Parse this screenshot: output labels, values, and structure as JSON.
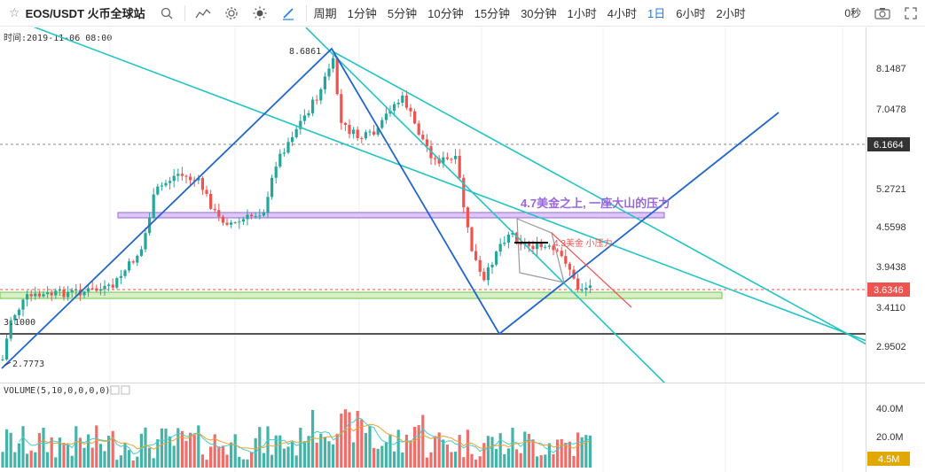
{
  "toolbar": {
    "symbol": "EOS/USDT 火币全球站",
    "period_label": "周期",
    "timeframes": [
      "1分钟",
      "5分钟",
      "10分钟",
      "15分钟",
      "30分钟",
      "1小时",
      "4小时",
      "1日",
      "6小时",
      "2小时"
    ],
    "active_timeframe": "1日",
    "countdown": "0秒",
    "icons": [
      "star-icon",
      "search-icon",
      "indicator-icon",
      "settings-icon",
      "theme-icon",
      "draw-icon",
      "camera-icon",
      "fullscreen-icon"
    ]
  },
  "chart_header": {
    "time_label": "时间:2019-11-06 08:00"
  },
  "price_axis": {
    "ticks": [
      "8.1487",
      "7.0478",
      "6.1664",
      "5.2721",
      "4.5598",
      "3.9438",
      "3.6346",
      "3.4110",
      "2.9502"
    ],
    "highlight_dark": "6.1664",
    "highlight_red": "3.6346"
  },
  "price_labels": {
    "high": "8.6861",
    "left_level": "3.1000",
    "low": "2.7773"
  },
  "annotations": {
    "resistance_big": "4.7美金之上, 一座大山的压力",
    "resistance_small": "4.3美金 小压力"
  },
  "volume": {
    "label": "VOLUME(5,10,0,0,0,0)",
    "ticks": [
      "40.0M",
      "20.0M"
    ],
    "current": "4.5M"
  },
  "colors": {
    "up": "#26a69a",
    "down": "#ef5350",
    "channel": "#22c4c4",
    "trend": "#2266cc",
    "accent": "#1e7bf0",
    "purple": "#9966dd",
    "green_zone": "#6cc644",
    "current_tag": "#e0a800"
  }
}
